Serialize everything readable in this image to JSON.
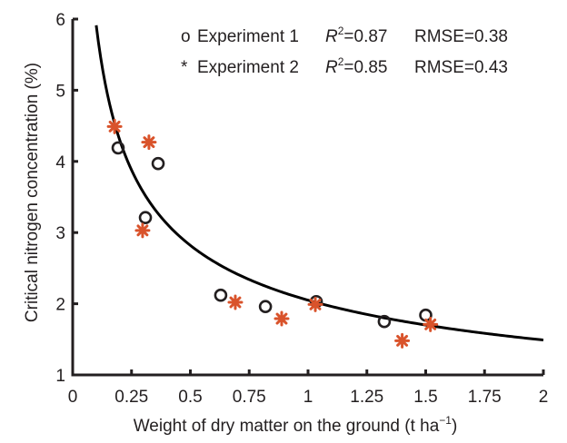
{
  "chart_data": {
    "type": "scatter",
    "title": "",
    "xlabel": "Weight of dry matter on the ground (t ha",
    "xlabel_sup": "−1",
    "xlabel_close": ")",
    "ylabel": "Critical nitrogen concentration (%)",
    "xlim": [
      0,
      2
    ],
    "ylim": [
      1,
      6
    ],
    "xticks": [
      0,
      0.25,
      0.5,
      0.75,
      1,
      1.25,
      1.5,
      1.75,
      2
    ],
    "xtick_labels": [
      "0",
      "0.25",
      "0.5",
      "0.75",
      "1",
      "1.25",
      "1.5",
      "1.75",
      "2"
    ],
    "yticks": [
      1,
      2,
      3,
      4,
      5,
      6
    ],
    "ytick_labels": [
      "1",
      "2",
      "3",
      "4",
      "5",
      "6"
    ],
    "grid": false,
    "legend_position": "top-right",
    "series": [
      {
        "name": "Experiment 1",
        "marker": "circle",
        "marker_symbol": "o",
        "color": "#231f20",
        "r2_label": "R",
        "r2_sup": "2",
        "r2_value": "=0.87",
        "rmse": "RMSE=0.38",
        "x": [
          0.193,
          0.363,
          0.309,
          0.629,
          0.819,
          1.035,
          1.324,
          1.5
        ],
        "y": [
          4.19,
          3.97,
          3.21,
          2.12,
          1.96,
          2.03,
          1.75,
          1.84
        ]
      },
      {
        "name": "Experiment 2",
        "marker": "star",
        "marker_symbol": "*",
        "color": "#d9532b",
        "r2_label": "R",
        "r2_sup": "2",
        "r2_value": "=0.85",
        "rmse": "RMSE=0.43",
        "x": [
          0.178,
          0.324,
          0.297,
          0.691,
          0.888,
          1.031,
          1.4,
          1.52
        ],
        "y": [
          4.49,
          4.27,
          3.03,
          2.02,
          1.79,
          1.99,
          1.48,
          1.71
        ]
      }
    ],
    "fit_curve": {
      "type": "power",
      "a": 2.05,
      "b": -0.46,
      "x_range": [
        0.1,
        2.0
      ],
      "color": "#000000"
    }
  }
}
